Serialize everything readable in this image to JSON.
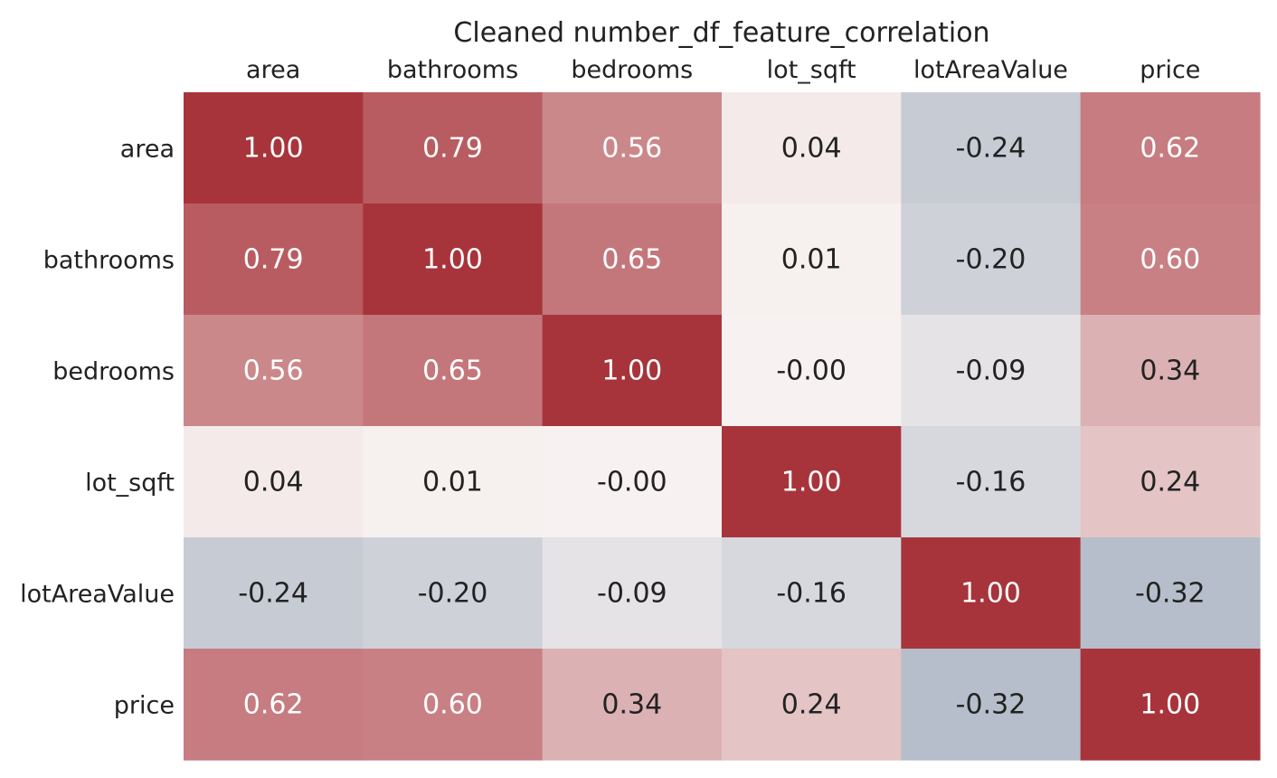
{
  "chart_data": {
    "type": "heatmap",
    "title": "Cleaned number_df_feature_correlation",
    "xlabel": "",
    "ylabel": "",
    "x_categories": [
      "area",
      "bathrooms",
      "bedrooms",
      "lot_sqft",
      "lotAreaValue",
      "price"
    ],
    "y_categories": [
      "area",
      "bathrooms",
      "bedrooms",
      "lot_sqft",
      "lotAreaValue",
      "price"
    ],
    "values": [
      [
        1.0,
        0.79,
        0.56,
        0.04,
        -0.24,
        0.62
      ],
      [
        0.79,
        1.0,
        0.65,
        0.01,
        -0.2,
        0.6
      ],
      [
        0.56,
        0.65,
        1.0,
        -0.0,
        -0.09,
        0.34
      ],
      [
        0.04,
        0.01,
        -0.0,
        1.0,
        -0.16,
        0.24
      ],
      [
        -0.24,
        -0.2,
        -0.09,
        -0.16,
        1.0,
        -0.32
      ],
      [
        0.62,
        0.6,
        0.34,
        0.24,
        -0.32,
        1.0
      ]
    ],
    "value_format": "0.00",
    "color_range": [
      -1,
      1
    ],
    "colors": {
      "positive": "#a8343b",
      "neutral": "#f7f2f1",
      "negative": "#2d4f7a",
      "text_dark": "#222222",
      "text_light": "#ffffff"
    },
    "x_tick_position": "top",
    "grid": false,
    "legend": "none"
  }
}
